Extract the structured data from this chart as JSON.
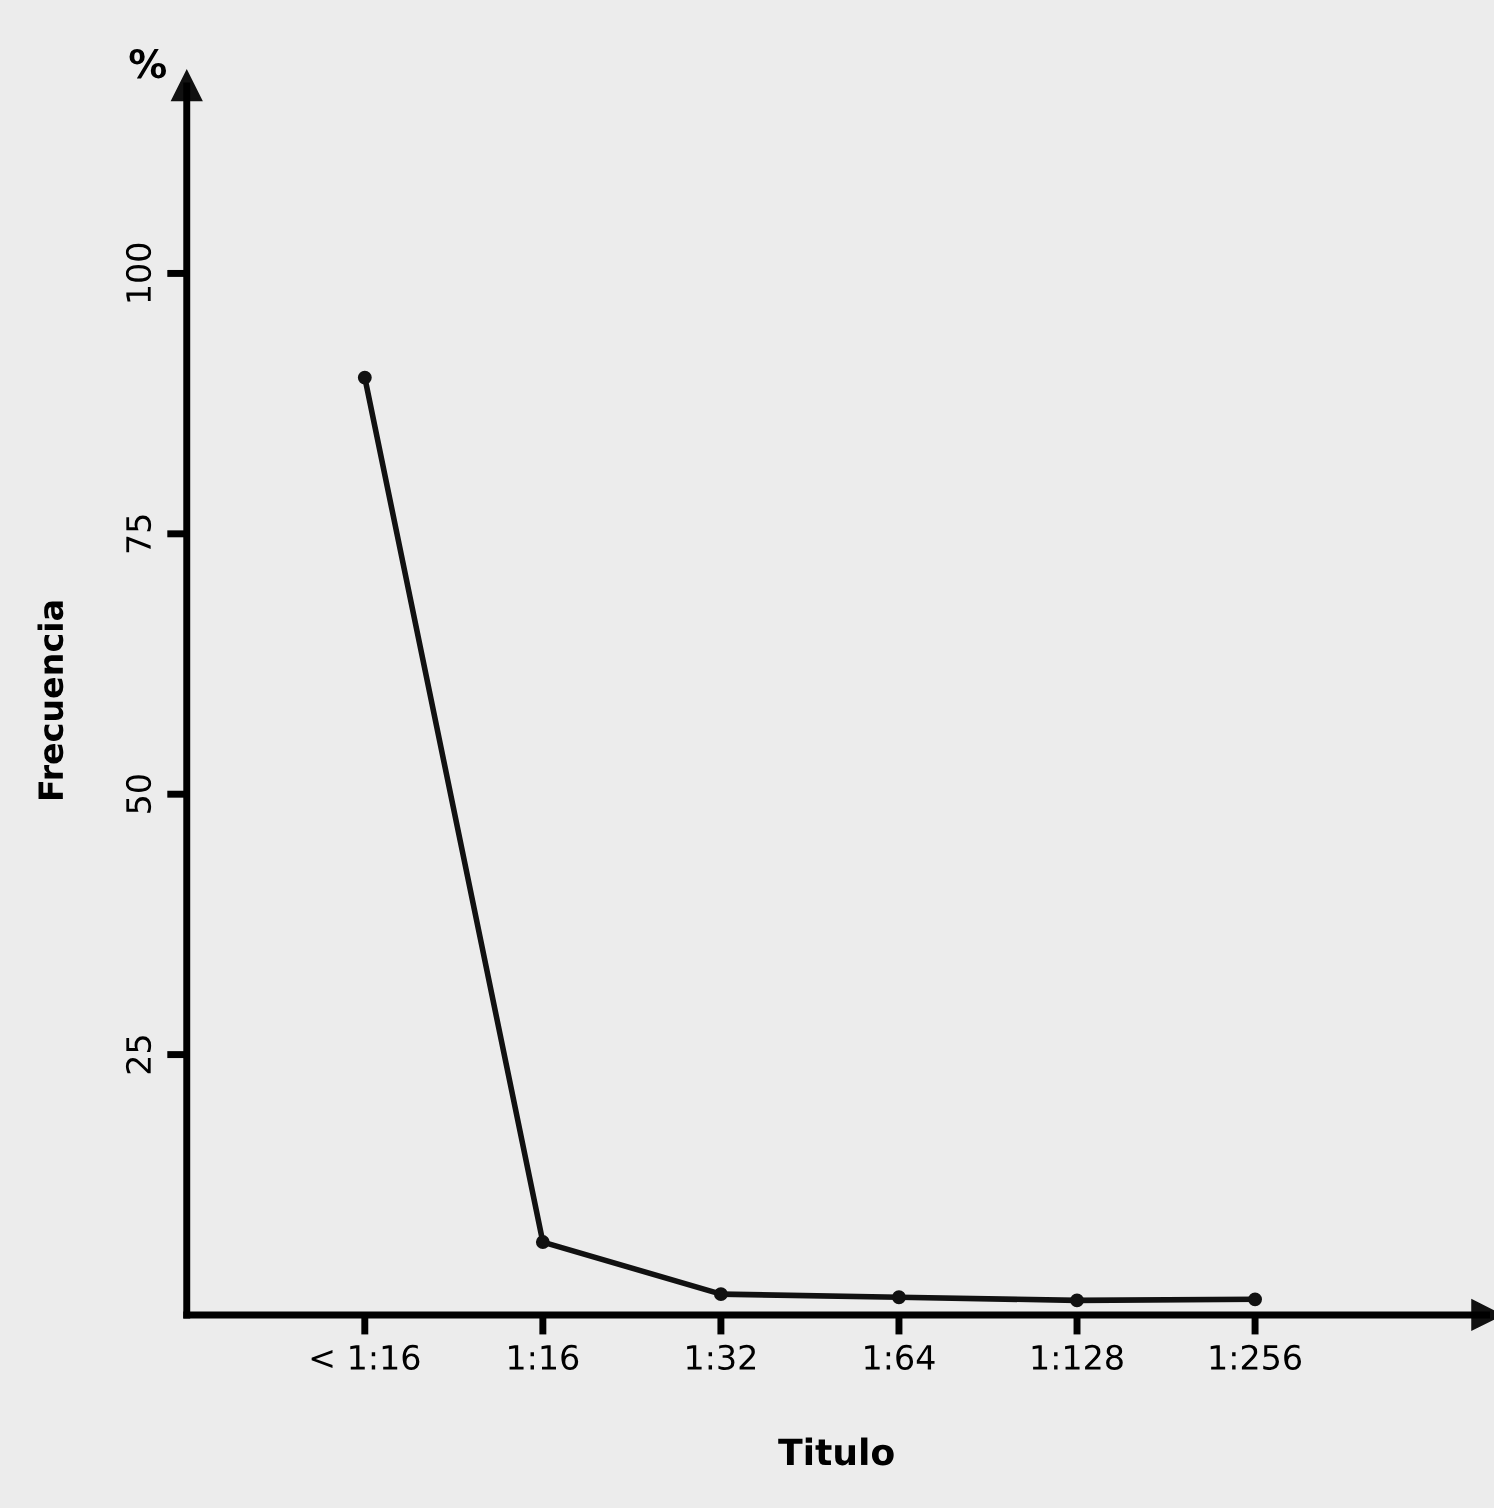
{
  "chart_data": {
    "type": "line",
    "xlabel": "Titulo",
    "ylabel": "Frecuencia",
    "annotations": [
      "%"
    ],
    "categories": [
      "< 1:16",
      "1:16",
      "1:32",
      "1:64",
      "1:128",
      "1:256"
    ],
    "series": [
      {
        "color": "#111111",
        "values": [
          90,
          7,
          2,
          1.7,
          1.4,
          1.5
        ]
      }
    ],
    "ylim": [
      0,
      118
    ],
    "yticks": [
      25,
      50,
      75,
      100
    ],
    "grid": false,
    "legend": false,
    "marker": "circle",
    "line_style": "solid"
  }
}
